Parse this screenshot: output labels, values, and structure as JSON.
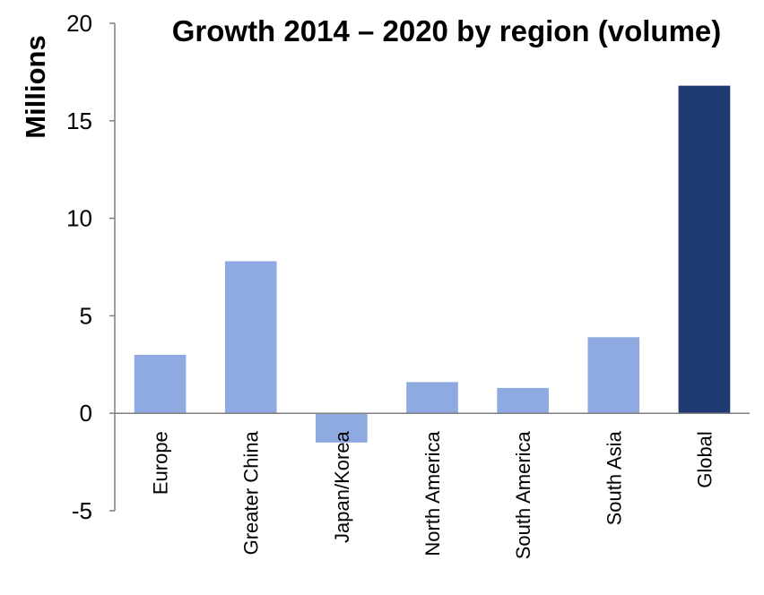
{
  "chart_data": {
    "type": "bar",
    "title": "Growth 2014 – 2020 by region (volume)",
    "xlabel": "",
    "ylabel": "Millions",
    "categories": [
      "Europe",
      "Greater China",
      "Japan/Korea",
      "North America",
      "South America",
      "South Asia",
      "Global"
    ],
    "values": [
      3.0,
      7.8,
      -1.5,
      1.6,
      1.3,
      3.9,
      16.8
    ],
    "ylim": [
      -5,
      20
    ],
    "yticks": [
      -5,
      0,
      5,
      10,
      15,
      20
    ],
    "grid": false,
    "legend": "none",
    "colors": {
      "regional": "#8eaae0",
      "global": "#1f3a70",
      "axis": "#7f7f7f"
    }
  }
}
